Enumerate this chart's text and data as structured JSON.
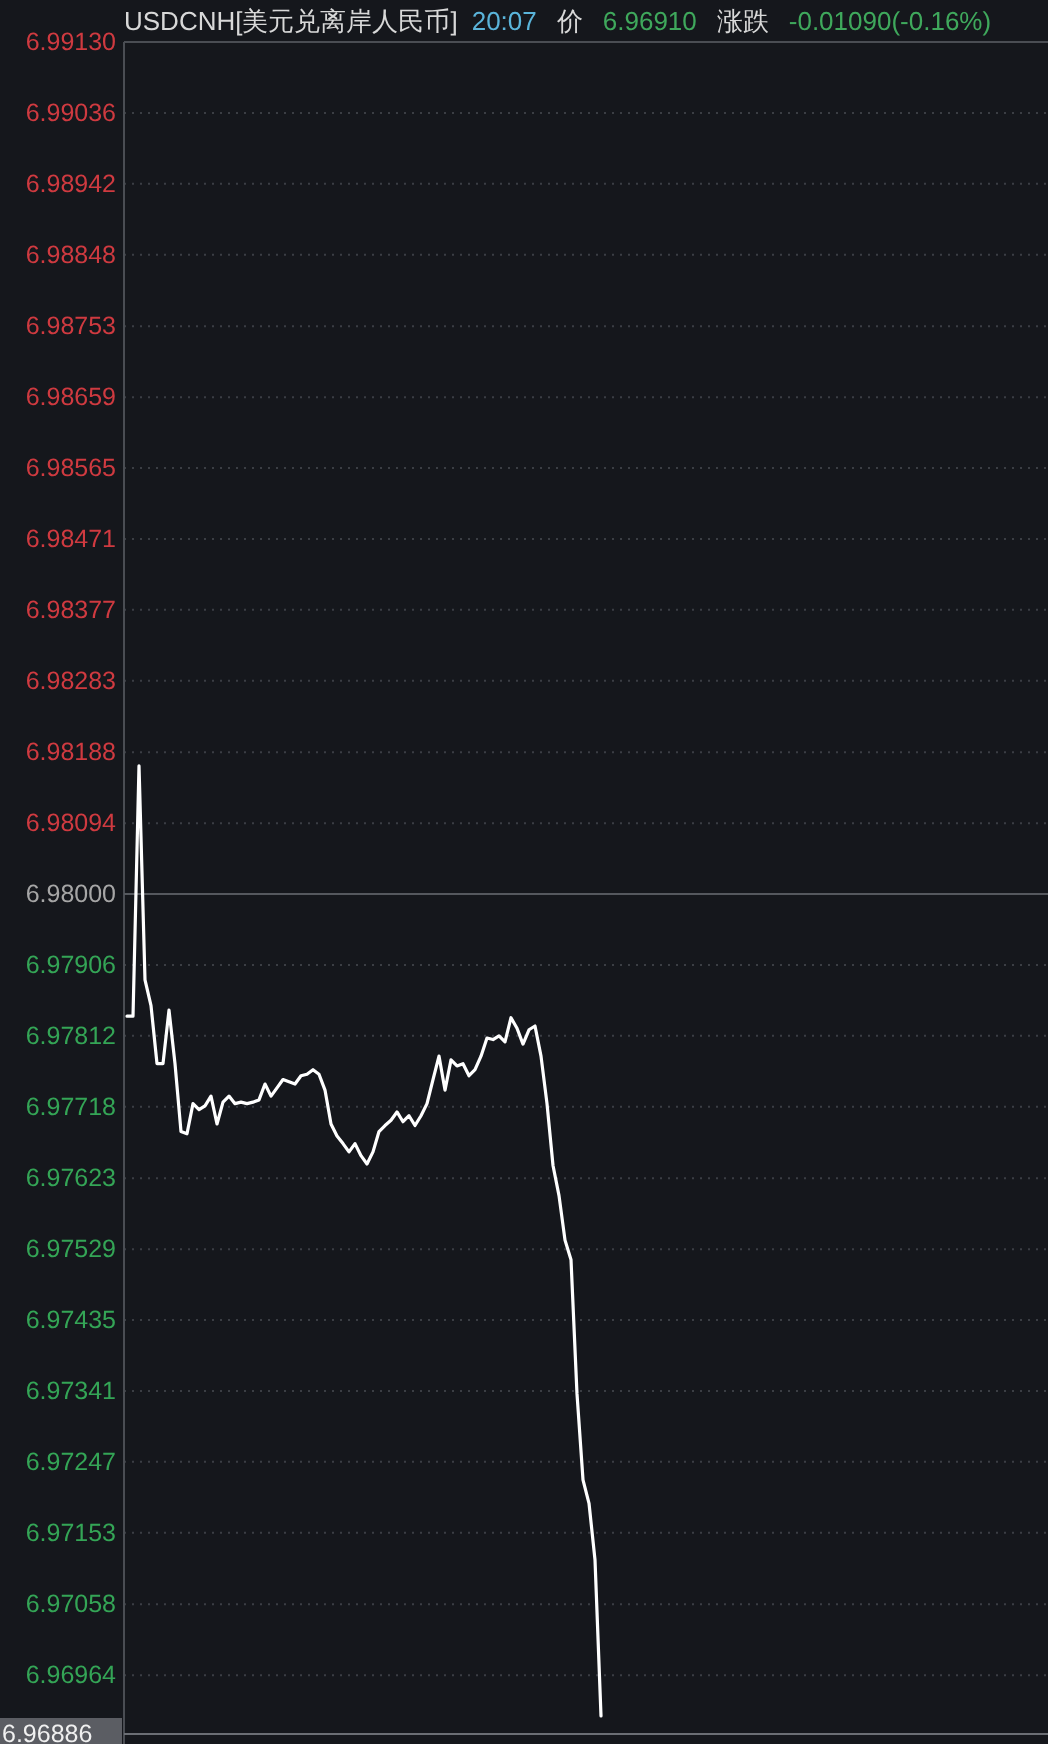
{
  "chart_data": {
    "type": "line",
    "title": "USDCNH[美元兑离岸人民币]",
    "annotations": [
      "20:07",
      "价",
      "6.96910",
      "涨跌",
      "-0.01090(-0.16%)"
    ],
    "categories": [
      null,
      null,
      null,
      null,
      null,
      null,
      null,
      null,
      null,
      null,
      null,
      null,
      null,
      null,
      null,
      null,
      null,
      null,
      null,
      null,
      null,
      null,
      null,
      null,
      null,
      null,
      null,
      null,
      null,
      null,
      null,
      null,
      null,
      null,
      null,
      null,
      null,
      null,
      null,
      null,
      null,
      null,
      null,
      null,
      null,
      null,
      null,
      null,
      null,
      null,
      null,
      null,
      null,
      null,
      null,
      null,
      null,
      null,
      null,
      null,
      null,
      null,
      null,
      null,
      null,
      null,
      null,
      null,
      null,
      null,
      null,
      null,
      null,
      null,
      null,
      null,
      null,
      null,
      null,
      null,
      null,
      null,
      null,
      null,
      null,
      null,
      null,
      null,
      null,
      null,
      null,
      null,
      null,
      null,
      null,
      null,
      null,
      null,
      null,
      null,
      null,
      null,
      null,
      null,
      null,
      null,
      null,
      null,
      null,
      null,
      null,
      null,
      null,
      null,
      null,
      null,
      null,
      null,
      null,
      null,
      null,
      null,
      null,
      null,
      null,
      null,
      null,
      null,
      null,
      null,
      null,
      null,
      null,
      null,
      null,
      null,
      null,
      null,
      null,
      null,
      null,
      null,
      null,
      null,
      null,
      null,
      null,
      null,
      null,
      null,
      null,
      null,
      null,
      null
    ],
    "series": [
      {
        "color": "#ffffff",
        "values": [
          6.97838,
          6.97838,
          6.9817,
          6.97886,
          6.97852,
          6.97775,
          6.97775,
          6.97846,
          6.97775,
          6.97685,
          6.97682,
          6.97722,
          6.97714,
          6.97719,
          6.97732,
          6.97695,
          6.97724,
          6.97732,
          6.97722,
          6.97724,
          6.97722,
          6.97724,
          6.97727,
          6.97748,
          6.97732,
          6.97743,
          6.97754,
          6.97751,
          6.97748,
          6.97759,
          6.97761,
          6.97767,
          6.97761,
          6.9774,
          6.97695,
          6.97679,
          6.97669,
          6.97658,
          6.97669,
          6.97653,
          6.97642,
          6.97658,
          6.97685,
          6.97693,
          6.977,
          6.97711,
          6.97698,
          6.97706,
          6.97693,
          6.97706,
          6.97722,
          6.97754,
          6.97785,
          6.9774,
          6.9778,
          6.97772,
          6.97775,
          6.97759,
          6.97767,
          6.97785,
          6.97809,
          6.97807,
          6.97812,
          6.97804,
          6.97836,
          6.97822,
          6.97801,
          6.9782,
          6.97825,
          6.97785,
          6.97722,
          6.9764,
          6.976,
          6.97541,
          6.97515,
          6.97337,
          6.97223,
          6.97192,
          6.97117,
          6.9691,
          null,
          null,
          null,
          null,
          null,
          null,
          null,
          null,
          null,
          null,
          null,
          null,
          null,
          null,
          null,
          null,
          null,
          null,
          null,
          null,
          null,
          null,
          null,
          null,
          null,
          null,
          null,
          null,
          null,
          null,
          null,
          null,
          null,
          null,
          null,
          null,
          null,
          null,
          null,
          null,
          null,
          null,
          null,
          null,
          null,
          null,
          null,
          null,
          null,
          null,
          null,
          null,
          null,
          null,
          null,
          null,
          null,
          null,
          null,
          null,
          null,
          null,
          null,
          null,
          null,
          null,
          null,
          null,
          null,
          null,
          null,
          null,
          null,
          null
        ]
      }
    ],
    "ylim": [
      6.96886,
      6.9913
    ],
    "yticks": [
      {
        "value": 6.9913,
        "label": "6.99130"
      },
      6.99036,
      6.98942,
      6.98848,
      6.98753,
      6.98659,
      6.98565,
      6.98471,
      6.98377,
      6.98283,
      6.98188,
      6.98094,
      {
        "value": 6.98,
        "label": "6.98000"
      },
      6.97906,
      6.97812,
      6.97718,
      6.97623,
      6.97529,
      6.97435,
      6.97341,
      6.97247,
      6.97153,
      6.97058,
      6.96964
    ],
    "ref_lines": [
      {
        "axis": "y",
        "value": 6.98,
        "color": "#55585e",
        "line_style": "solid"
      },
      {
        "axis": "y",
        "value": 6.96886,
        "label": "6.96886",
        "color": "#6b6e74",
        "line_style": "solid"
      }
    ],
    "grid": "y",
    "tick_labels": "y",
    "line_style": "solid",
    "marker": "none"
  }
}
